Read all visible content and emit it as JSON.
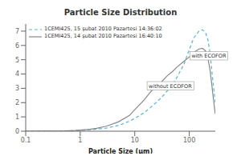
{
  "chart_data": {
    "type": "line",
    "title": "Particle Size Distribution",
    "xlabel": "Particle Size (μm)",
    "log": "x",
    "grid": false,
    "legend": "upper left",
    "xlim": [
      0.1,
      300
    ],
    "ylim": [
      0,
      7.5
    ],
    "xticks": [
      0.1,
      1,
      10,
      100
    ],
    "yticks": [
      0,
      1,
      2,
      3,
      4,
      5,
      6,
      7
    ],
    "x": [
      0.1,
      0.2,
      0.3,
      0.5,
      0.8,
      1.0,
      1.5,
      2.0,
      3.0,
      5.0,
      8.0,
      10.0,
      15.0,
      20.0,
      30.0,
      40.0,
      50.0,
      60.0,
      80.0,
      100.0,
      120.0,
      150.0,
      175.0,
      200.0,
      220.0,
      240.0,
      260.0,
      280.0,
      300.0
    ],
    "series": [
      {
        "name": "1CEMI425, 15 şubat 2010 Pazartesi 14:36:02",
        "color": "#5ab4d6",
        "line_style": "dashed",
        "values": [
          0.0,
          0.01,
          0.01,
          0.02,
          0.04,
          0.06,
          0.1,
          0.15,
          0.22,
          0.4,
          0.7,
          0.9,
          1.3,
          1.7,
          2.3,
          2.85,
          3.3,
          3.8,
          4.7,
          5.7,
          6.5,
          7.0,
          7.1,
          6.85,
          6.4,
          5.5,
          4.2,
          3.0,
          2.0
        ]
      },
      {
        "name": "1CEMI425, 14 şubat 2010 Pazartesi 16:40:10",
        "color": "#888888",
        "line_style": "solid",
        "values": [
          0.0,
          0.01,
          0.01,
          0.02,
          0.05,
          0.08,
          0.13,
          0.2,
          0.35,
          0.65,
          1.1,
          1.5,
          2.2,
          2.8,
          3.4,
          3.9,
          4.2,
          4.5,
          4.9,
          5.2,
          5.5,
          5.75,
          5.8,
          5.6,
          5.1,
          4.3,
          3.2,
          2.1,
          1.2
        ]
      }
    ],
    "annotations": [
      {
        "text": "with ECOFOR",
        "x": 110,
        "y": 5.15
      },
      {
        "text": "without ECOFOR",
        "x": 18,
        "y": 3.05
      }
    ]
  }
}
